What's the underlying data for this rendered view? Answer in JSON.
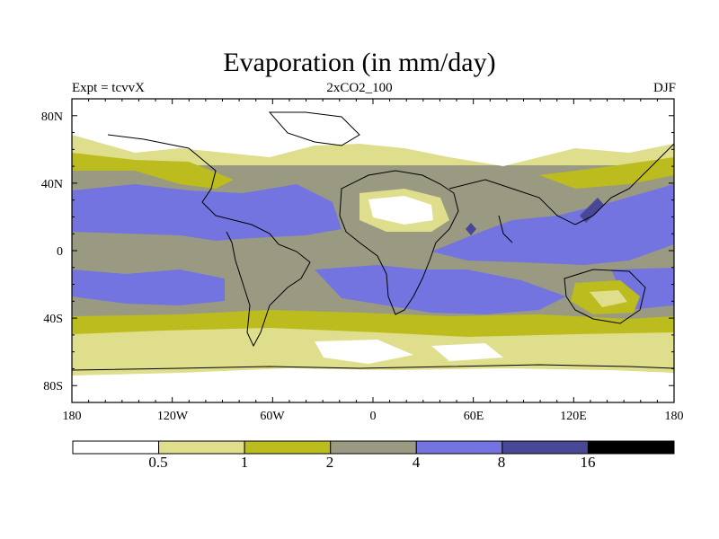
{
  "title": "Evaporation (in mm/day)",
  "subtitle_left": "Expt = tcvvX",
  "subtitle_center": "2xCO2_100",
  "subtitle_right": "DJF",
  "lat_labels": [
    "80N",
    "40N",
    "0",
    "40S",
    "80S"
  ],
  "lon_labels": [
    "180",
    "120W",
    "60W",
    "0",
    "60E",
    "120E",
    "180"
  ],
  "colorbar": {
    "levels": [
      "0.5",
      "1",
      "2",
      "4",
      "8",
      "16"
    ],
    "colors": [
      "#ffffff",
      "#dede8c",
      "#bcbc1e",
      "#9a9a82",
      "#7474e0",
      "#484896",
      "#000000"
    ]
  },
  "chart_data": {
    "type": "heatmap",
    "title": "Evaporation (in mm/day)",
    "subtitle": "2xCO2_100",
    "experiment": "Expt = tcvvX",
    "season": "DJF",
    "x_ticks": [
      "180",
      "120W",
      "60W",
      "0",
      "60E",
      "120E",
      "180"
    ],
    "y_ticks": [
      "80N",
      "40N",
      "0",
      "40S",
      "80S"
    ],
    "contour_levels": [
      0.5,
      1,
      2,
      4,
      8,
      16
    ],
    "legend": "bottom colorbar"
  }
}
